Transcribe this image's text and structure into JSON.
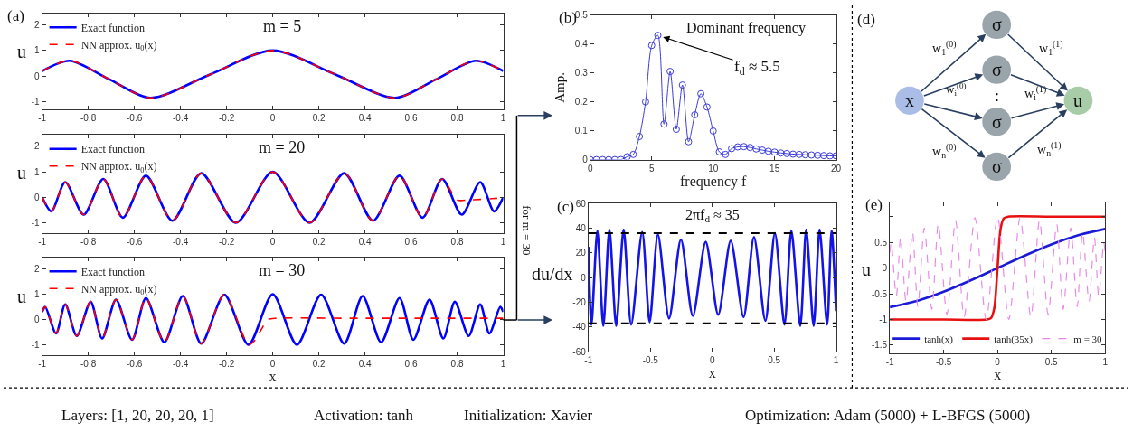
{
  "chart_data": [
    {
      "type": "line",
      "title": "m = 5",
      "annotations": [
        "(a)"
      ],
      "ylabel": "u",
      "legend": "top left",
      "xlim": [
        -1,
        1
      ],
      "xticks": [
        -1,
        -0.8,
        -0.6,
        -0.4,
        -0.2,
        0,
        0.2,
        0.4,
        0.6,
        0.8,
        1
      ],
      "ylim": [
        -1.3,
        2.45
      ],
      "yticks": [
        -1,
        0,
        1,
        2
      ],
      "series": [
        {
          "name": "Exact function",
          "color": "#0000ff",
          "line_style": "solid",
          "x": [
            -1,
            -0.88,
            -0.71,
            -0.53,
            -0.27,
            0,
            0.27,
            0.53,
            0.71,
            0.88,
            1
          ],
          "values": [
            0.2,
            0.6,
            -0.12,
            -0.85,
            0.07,
            1,
            0.07,
            -0.85,
            -0.12,
            0.6,
            0.2
          ]
        },
        {
          "name": "NN approx. u$_{0}$(x)",
          "color": "#ff0000",
          "line_style": "dashed",
          "x": [
            -1,
            -0.88,
            -0.71,
            -0.53,
            -0.27,
            0,
            0.27,
            0.53,
            0.71,
            0.88,
            1
          ],
          "values": [
            0.2,
            0.6,
            -0.12,
            -0.85,
            0.07,
            1,
            0.07,
            -0.85,
            -0.12,
            0.6,
            0.2
          ]
        }
      ]
    },
    {
      "type": "line",
      "title": "m = 20",
      "ylabel": "u",
      "legend": "top left",
      "xlim": [
        -1,
        1
      ],
      "xticks": [
        -1,
        -0.8,
        -0.6,
        -0.4,
        -0.2,
        0,
        0.2,
        0.4,
        0.6,
        0.8,
        1
      ],
      "ylim": [
        -1.39,
        2.45
      ],
      "yticks": [
        -1,
        0,
        1,
        2
      ],
      "series": [
        {
          "name": "Exact function",
          "color": "#0000ff",
          "line_style": "solid",
          "x": [
            -1,
            -0.96,
            -0.9,
            -0.82,
            -0.735,
            -0.65,
            -0.55,
            -0.435,
            -0.31,
            -0.16,
            0,
            0.16,
            0.31,
            0.435,
            0.55,
            0.65,
            0.735,
            0.82,
            0.9,
            0.96,
            1
          ],
          "values": [
            0,
            -0.55,
            0.6,
            -0.68,
            0.72,
            -0.8,
            0.85,
            -0.92,
            0.95,
            -1,
            1,
            -1,
            0.95,
            -0.92,
            0.85,
            -0.8,
            0.72,
            -0.68,
            0.6,
            -0.55,
            0
          ]
        },
        {
          "name": "NN approx. u$_{0}$(x)",
          "color": "#ff0000",
          "line_style": "dashed",
          "x": [
            -1,
            -0.96,
            -0.9,
            -0.82,
            -0.735,
            -0.65,
            -0.55,
            -0.435,
            -0.31,
            -0.16,
            0,
            0.16,
            0.31,
            0.435,
            0.55,
            0.65,
            0.735,
            0.8,
            0.85,
            0.9,
            0.95,
            1
          ],
          "values": [
            0,
            -0.55,
            0.6,
            -0.68,
            0.72,
            -0.8,
            0.85,
            -0.92,
            0.95,
            -1,
            1,
            -1,
            0.95,
            -0.92,
            0.85,
            -0.8,
            0.72,
            -0.1,
            -0.1,
            -0.08,
            -0.05,
            -0.02
          ]
        }
      ]
    },
    {
      "type": "line",
      "title": "m = 30",
      "annotations": [
        "for m = 30"
      ],
      "xlabel": "x",
      "ylabel": "u",
      "legend": "top left",
      "xlim": [
        -1,
        1
      ],
      "xticks": [
        -1,
        -0.8,
        -0.6,
        -0.4,
        -0.2,
        0,
        0.2,
        0.4,
        0.6,
        0.8,
        1
      ],
      "ylim": [
        -1.41,
        2.45
      ],
      "yticks": [
        -1,
        0,
        1,
        2
      ],
      "series": [
        {
          "name": "Exact function",
          "color": "#0000ff",
          "line_style": "solid",
          "x": [
            -1,
            -0.987,
            -0.94,
            -0.9,
            -0.85,
            -0.79,
            -0.74,
            -0.68,
            -0.61,
            -0.55,
            -0.47,
            -0.39,
            -0.31,
            -0.21,
            -0.105,
            0,
            0.105,
            0.21,
            0.31,
            0.39,
            0.47,
            0.55,
            0.61,
            0.68,
            0.74,
            0.79,
            0.85,
            0.9,
            0.94,
            0.987,
            1
          ],
          "values": [
            0.3,
            0.5,
            -0.55,
            0.6,
            -0.65,
            0.7,
            -0.75,
            0.78,
            -0.8,
            0.85,
            -0.9,
            0.93,
            -0.95,
            0.98,
            -1,
            1,
            -1,
            0.98,
            -0.95,
            0.93,
            -0.9,
            0.85,
            -0.8,
            0.78,
            -0.75,
            0.7,
            -0.65,
            0.6,
            -0.55,
            0.5,
            0.3
          ]
        },
        {
          "name": "NN approx. u$_{0}$(x)",
          "color": "#ff0000",
          "line_style": "dashed",
          "x": [
            -1,
            -0.987,
            -0.94,
            -0.9,
            -0.85,
            -0.79,
            -0.74,
            -0.68,
            -0.61,
            -0.55,
            -0.47,
            -0.39,
            -0.31,
            -0.21,
            -0.105,
            -0.08,
            -0.05,
            -0.02,
            0.02,
            0.3,
            0.6,
            1
          ],
          "values": [
            0.3,
            0.5,
            -0.55,
            0.6,
            -0.65,
            0.7,
            -0.75,
            0.78,
            -0.8,
            0.85,
            -0.9,
            0.93,
            -0.95,
            0.98,
            -1,
            -0.85,
            -0.4,
            0,
            0.05,
            0.05,
            0.05,
            0.05
          ]
        }
      ]
    },
    {
      "type": "line",
      "marker": "circle",
      "annotations": [
        "(b)",
        "Dominant frequency",
        {
          "text": "f$_{d}$ ≈ 5.5",
          "x": 5.5,
          "y": 0.43
        }
      ],
      "xlabel": "frequency f",
      "ylabel": "Amp.",
      "xlim": [
        0,
        20
      ],
      "xticks": [
        0,
        5,
        10,
        15,
        20
      ],
      "ylim": [
        0,
        0.5
      ],
      "yticks": [
        0,
        0.1,
        0.2,
        0.3,
        0.4,
        0.5
      ],
      "x": [
        0,
        0.5,
        1,
        1.5,
        2,
        2.5,
        3,
        3.5,
        4,
        4.5,
        5,
        5.5,
        6,
        6.5,
        7,
        7.5,
        8,
        8.5,
        9,
        9.5,
        10,
        10.5,
        11,
        11.5,
        12,
        12.5,
        13,
        13.5,
        14,
        14.5,
        15,
        15.5,
        16,
        16.5,
        17,
        17.5,
        18,
        18.5,
        19,
        19.5,
        20
      ],
      "series": [
        {
          "color": "#3c3cdc",
          "values": [
            0,
            0,
            0,
            0,
            0,
            0,
            0.01,
            0.018,
            0.08,
            0.2,
            0.395,
            0.43,
            0.123,
            0.305,
            0.105,
            0.258,
            0.062,
            0.155,
            0.228,
            0.182,
            0.099,
            0.027,
            0.018,
            0.038,
            0.044,
            0.045,
            0.042,
            0.037,
            0.033,
            0.029,
            0.026,
            0.023,
            0.021,
            0.019,
            0.018,
            0.017,
            0.016,
            0.015,
            0.014,
            0.013,
            0.013
          ]
        }
      ]
    },
    {
      "type": "line",
      "annotations": [
        "(c)",
        "2πf$_{d}$ ≈ 35"
      ],
      "xlabel": "x",
      "ylabel": "du/dx",
      "xlim": [
        -1,
        1
      ],
      "xticks": [
        -1,
        -0.5,
        0,
        0.5,
        1
      ],
      "ylim": [
        -60,
        60
      ],
      "yticks": [
        -60,
        -40,
        -20,
        0,
        20,
        40,
        60
      ],
      "ref_lines": [
        {
          "axis": "y",
          "value": 36,
          "color": "#000000",
          "line_style": "dashed"
        },
        {
          "axis": "y",
          "value": -37,
          "color": "#000000",
          "line_style": "dashed"
        }
      ],
      "series": [
        {
          "color": "#1414e6",
          "x": [
            -1,
            -0.976,
            -0.928,
            -0.88,
            -0.831,
            -0.776,
            -0.716,
            -0.655,
            -0.566,
            -0.506,
            -0.439,
            -0.349,
            -0.253,
            -0.157,
            -0.053,
            0.048,
            0.149,
            0.253,
            0.337,
            0.429,
            0.506,
            0.583,
            0.639,
            0.711,
            0.759,
            0.819,
            0.867,
            0.928,
            0.964,
            1
          ],
          "values": [
            25,
            -38,
            38,
            -39,
            39,
            -39,
            39,
            -38,
            37,
            -36,
            35,
            -33,
            31,
            -31,
            29,
            -30,
            30,
            -32,
            33,
            -35,
            36,
            -38,
            38,
            -39,
            39,
            -39,
            39,
            -38,
            38,
            -27
          ]
        }
      ]
    },
    {
      "type": "other",
      "annotations": [
        "(d)",
        "x",
        "σ",
        "σ",
        "σ",
        "σ",
        "u",
        ":",
        "w$_{1}$$^{(0)}$",
        "w$_{i}$$^{(0)}$",
        "w$_{n}$$^{(0)}$",
        "w$_{1}$$^{(1)}$",
        "w$_{i}$$^{(1)}$",
        "w$_{n}$$^{(1)}$"
      ]
    },
    {
      "type": "line",
      "annotations": [
        "(e)"
      ],
      "xlabel": "x",
      "ylabel": "u",
      "legend": "bottom",
      "xlim": [
        -1,
        1
      ],
      "xticks": [
        -1,
        -0.5,
        0,
        0.5,
        1
      ],
      "ylim": [
        -1.66,
        1.27
      ],
      "yticks": [
        -1.5,
        -1,
        -0.5,
        0,
        0.5,
        {
          "value": 1,
          "label": null
        }
      ],
      "series": [
        {
          "name": "tanh(x)",
          "color": "#1a1ad8",
          "line_style": "solid",
          "x": [
            -1,
            -0.75,
            -0.5,
            -0.25,
            0,
            0.25,
            0.5,
            0.75,
            1
          ],
          "values": [
            -0.76,
            -0.64,
            -0.46,
            -0.24,
            0,
            0.24,
            0.46,
            0.64,
            0.76
          ]
        },
        {
          "name": "tanh(35x)",
          "color": "#e81010",
          "line_style": "solid",
          "x": [
            -1,
            -0.5,
            -0.1,
            -0.06,
            -0.03,
            0,
            0.03,
            0.06,
            0.1,
            0.5,
            1
          ],
          "values": [
            -1,
            -1,
            -1,
            -0.97,
            -0.78,
            0,
            0.78,
            0.97,
            1,
            1,
            1
          ]
        },
        {
          "name": "m = 30",
          "color": "#e88ae8",
          "line_style": "dashed",
          "x": [
            -1,
            -0.987,
            -0.94,
            -0.9,
            -0.85,
            -0.79,
            -0.74,
            -0.68,
            -0.61,
            -0.55,
            -0.47,
            -0.39,
            -0.31,
            -0.21,
            -0.105,
            0,
            0.105,
            0.21,
            0.31,
            0.39,
            0.47,
            0.55,
            0.61,
            0.68,
            0.74,
            0.79,
            0.85,
            0.9,
            0.94,
            0.987,
            1
          ],
          "values": [
            0.3,
            0.5,
            -0.55,
            0.6,
            -0.65,
            0.7,
            -0.75,
            0.78,
            -0.8,
            0.85,
            -0.9,
            0.93,
            -0.95,
            0.98,
            -1,
            1,
            -1,
            0.98,
            -0.95,
            0.93,
            -0.9,
            0.85,
            -0.8,
            0.78,
            -0.75,
            0.7,
            -0.65,
            0.6,
            -0.55,
            0.5,
            0.3
          ]
        }
      ]
    },
    {
      "type": "other",
      "annotations": [
        "Layers: [1, 20, 20, 20, 1]",
        "Activation: tanh",
        "Initialization: Xavier",
        "Optimization: Adam (5000) + L-BFGS (5000)"
      ]
    }
  ]
}
